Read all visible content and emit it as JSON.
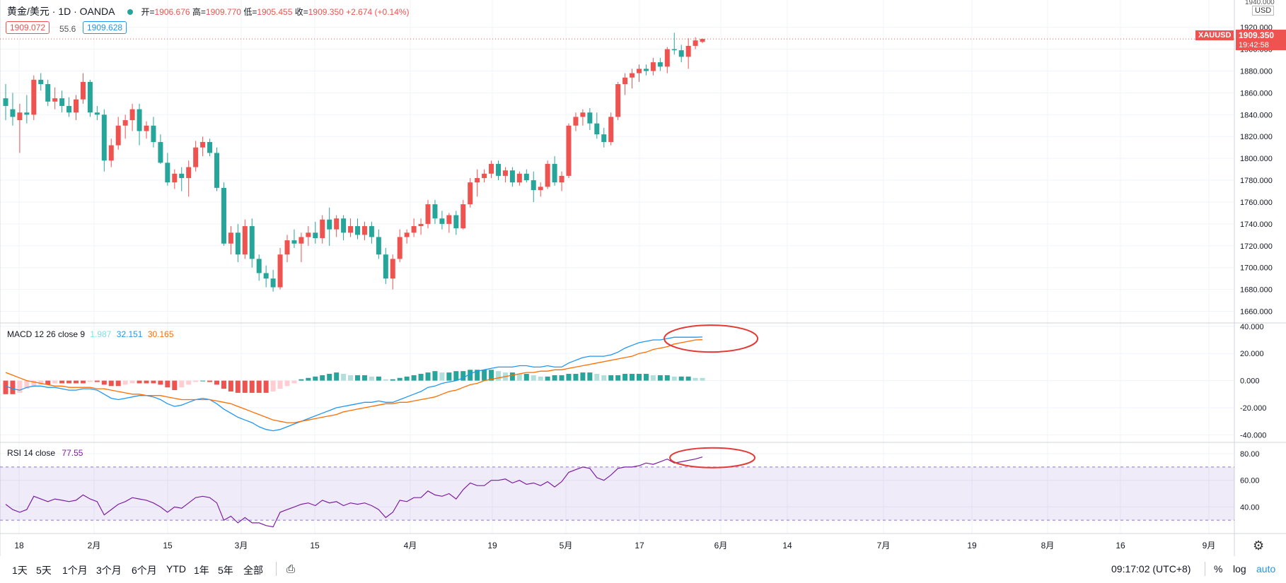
{
  "header": {
    "symbol": "黄金/美元 · 1D · OANDA",
    "ohlc": {
      "open_label": "开=",
      "open": "1906.676",
      "high_label": "高=",
      "high": "1909.770",
      "low_label": "低=",
      "low": "1905.455",
      "close_label": "收=",
      "close": "1909.350",
      "change": "+2.674 (+0.14%)"
    },
    "bid": "1909.072",
    "spread": "55.6",
    "ask": "1909.628"
  },
  "price_axis": {
    "currency": "USD",
    "top_tick": "1940.000",
    "ticker_tag": "XAUUSD",
    "last_price": "1909.350",
    "countdown": "19:42:58"
  },
  "macd_legend": {
    "name": "MACD 12 26 close 9",
    "hist": "1.987",
    "macd": "32.151",
    "signal": "30.165"
  },
  "rsi_legend": {
    "name": "RSI 14 close",
    "value": "77.55"
  },
  "colors": {
    "up": "#ef5350",
    "down": "#26a69a",
    "macd": "#2196f3",
    "signal": "#ff6d00",
    "rsi": "#7b1fa2",
    "annot": "#e53935"
  },
  "chart_data": [
    {
      "type": "candlestick",
      "title": "黄金/美元 · 1D · OANDA",
      "ylim": [
        1650,
        1945
      ],
      "yticks": [
        "1660.000",
        "1680.000",
        "1700.000",
        "1720.000",
        "1740.000",
        "1760.000",
        "1780.000",
        "1800.000",
        "1820.000",
        "1840.000",
        "1860.000",
        "1880.000",
        "1900.000",
        "1920.000"
      ],
      "x_labels": [
        "18",
        "2月",
        "15",
        "3月",
        "15",
        "4月",
        "19",
        "5月",
        "17",
        "6月",
        "14",
        "7月",
        "19",
        "8月",
        "16",
        "9月"
      ],
      "ohlc": [
        [
          1855,
          1868,
          1835,
          1848
        ],
        [
          1845,
          1860,
          1830,
          1838
        ],
        [
          1835,
          1850,
          1805,
          1842
        ],
        [
          1842,
          1858,
          1832,
          1840
        ],
        [
          1840,
          1876,
          1835,
          1872
        ],
        [
          1872,
          1878,
          1862,
          1868
        ],
        [
          1868,
          1872,
          1848,
          1852
        ],
        [
          1852,
          1865,
          1845,
          1855
        ],
        [
          1855,
          1862,
          1842,
          1848
        ],
        [
          1848,
          1856,
          1838,
          1842
        ],
        [
          1842,
          1858,
          1835,
          1854
        ],
        [
          1854,
          1878,
          1850,
          1870
        ],
        [
          1870,
          1872,
          1838,
          1842
        ],
        [
          1842,
          1848,
          1835,
          1840
        ],
        [
          1840,
          1845,
          1788,
          1798
        ],
        [
          1798,
          1818,
          1792,
          1812
        ],
        [
          1812,
          1838,
          1808,
          1830
        ],
        [
          1830,
          1840,
          1818,
          1835
        ],
        [
          1835,
          1850,
          1825,
          1845
        ],
        [
          1845,
          1850,
          1812,
          1825
        ],
        [
          1825,
          1834,
          1818,
          1830
        ],
        [
          1830,
          1838,
          1810,
          1815
        ],
        [
          1815,
          1822,
          1795,
          1796
        ],
        [
          1796,
          1805,
          1775,
          1778
        ],
        [
          1778,
          1790,
          1772,
          1786
        ],
        [
          1786,
          1792,
          1770,
          1782
        ],
        [
          1782,
          1798,
          1765,
          1792
        ],
        [
          1792,
          1816,
          1788,
          1810
        ],
        [
          1810,
          1820,
          1802,
          1815
        ],
        [
          1815,
          1818,
          1802,
          1805
        ],
        [
          1805,
          1810,
          1770,
          1773
        ],
        [
          1773,
          1778,
          1720,
          1722
        ],
        [
          1722,
          1738,
          1712,
          1732
        ],
        [
          1732,
          1740,
          1705,
          1712
        ],
        [
          1712,
          1744,
          1708,
          1738
        ],
        [
          1738,
          1745,
          1700,
          1708
        ],
        [
          1708,
          1712,
          1688,
          1695
        ],
        [
          1695,
          1702,
          1682,
          1690
        ],
        [
          1690,
          1698,
          1678,
          1682
        ],
        [
          1682,
          1718,
          1680,
          1712
        ],
        [
          1712,
          1730,
          1705,
          1725
        ],
        [
          1725,
          1735,
          1718,
          1722
        ],
        [
          1722,
          1732,
          1705,
          1728
        ],
        [
          1728,
          1738,
          1720,
          1732
        ],
        [
          1732,
          1742,
          1722,
          1727
        ],
        [
          1727,
          1748,
          1722,
          1744
        ],
        [
          1744,
          1755,
          1720,
          1735
        ],
        [
          1735,
          1748,
          1728,
          1745
        ],
        [
          1745,
          1748,
          1725,
          1732
        ],
        [
          1732,
          1745,
          1728,
          1738
        ],
        [
          1738,
          1745,
          1726,
          1730
        ],
        [
          1730,
          1742,
          1725,
          1738
        ],
        [
          1738,
          1742,
          1722,
          1728
        ],
        [
          1728,
          1735,
          1708,
          1712
        ],
        [
          1712,
          1718,
          1685,
          1690
        ],
        [
          1690,
          1712,
          1680,
          1708
        ],
        [
          1708,
          1735,
          1705,
          1728
        ],
        [
          1728,
          1735,
          1722,
          1732
        ],
        [
          1732,
          1745,
          1728,
          1738
        ],
        [
          1738,
          1745,
          1730,
          1740
        ],
        [
          1740,
          1762,
          1736,
          1758
        ],
        [
          1758,
          1762,
          1740,
          1745
        ],
        [
          1745,
          1752,
          1735,
          1740
        ],
        [
          1740,
          1750,
          1732,
          1748
        ],
        [
          1748,
          1752,
          1730,
          1736
        ],
        [
          1736,
          1762,
          1735,
          1758
        ],
        [
          1758,
          1782,
          1755,
          1778
        ],
        [
          1778,
          1790,
          1765,
          1782
        ],
        [
          1782,
          1790,
          1778,
          1786
        ],
        [
          1786,
          1798,
          1782,
          1795
        ],
        [
          1795,
          1798,
          1780,
          1784
        ],
        [
          1784,
          1792,
          1778,
          1789
        ],
        [
          1789,
          1792,
          1774,
          1778
        ],
        [
          1778,
          1788,
          1775,
          1786
        ],
        [
          1786,
          1790,
          1778,
          1780
        ],
        [
          1780,
          1788,
          1760,
          1771
        ],
        [
          1771,
          1778,
          1765,
          1774
        ],
        [
          1774,
          1798,
          1772,
          1795
        ],
        [
          1795,
          1802,
          1775,
          1778
        ],
        [
          1778,
          1788,
          1770,
          1784
        ],
        [
          1784,
          1832,
          1782,
          1830
        ],
        [
          1830,
          1842,
          1825,
          1838
        ],
        [
          1838,
          1845,
          1830,
          1842
        ],
        [
          1842,
          1846,
          1826,
          1832
        ],
        [
          1832,
          1842,
          1818,
          1822
        ],
        [
          1822,
          1828,
          1810,
          1815
        ],
        [
          1815,
          1842,
          1812,
          1838
        ],
        [
          1838,
          1870,
          1835,
          1868
        ],
        [
          1868,
          1878,
          1858,
          1874
        ],
        [
          1874,
          1882,
          1864,
          1878
        ],
        [
          1878,
          1886,
          1870,
          1882
        ],
        [
          1882,
          1886,
          1876,
          1880
        ],
        [
          1880,
          1892,
          1876,
          1888
        ],
        [
          1888,
          1892,
          1880,
          1884
        ],
        [
          1884,
          1902,
          1878,
          1900
        ],
        [
          1900,
          1915,
          1895,
          1899
        ],
        [
          1899,
          1904,
          1888,
          1893
        ],
        [
          1893,
          1910,
          1882,
          1903
        ],
        [
          1903,
          1911,
          1900,
          1908
        ],
        [
          1906.676,
          1909.77,
          1905.455,
          1909.35
        ]
      ]
    },
    {
      "type": "line",
      "title": "MACD 12 26 close 9",
      "ylim": [
        -45,
        42
      ],
      "yticks": [
        "40.000",
        "20.000",
        "0.000",
        "-20.000",
        "-40.000"
      ],
      "series": [
        {
          "name": "MACD",
          "values": [
            -4,
            -6,
            -7,
            -5,
            -4,
            -4,
            -5,
            -5,
            -6,
            -7,
            -7,
            -6,
            -6,
            -7,
            -10,
            -13,
            -14,
            -13,
            -12,
            -11,
            -11,
            -12,
            -14,
            -17,
            -19,
            -18,
            -16,
            -14,
            -13,
            -14,
            -17,
            -21,
            -24,
            -27,
            -29,
            -31,
            -34,
            -36,
            -37,
            -36,
            -34,
            -32,
            -30,
            -28,
            -26,
            -24,
            -22,
            -20,
            -19,
            -18,
            -17,
            -16,
            -16,
            -15,
            -16,
            -16,
            -14,
            -12,
            -10,
            -8,
            -5,
            -4,
            -2,
            -1,
            0,
            2,
            5,
            7,
            8,
            9,
            10,
            10,
            10,
            11,
            11,
            10,
            10,
            11,
            10,
            10,
            13,
            15,
            17,
            18,
            18,
            18,
            19,
            21,
            24,
            26,
            28,
            29,
            30,
            30,
            31,
            32,
            32,
            32,
            32,
            32.151
          ]
        },
        {
          "name": "Signal",
          "values": [
            6,
            4,
            2,
            0,
            -1,
            -2,
            -3,
            -4,
            -4,
            -5,
            -5,
            -5,
            -5,
            -6,
            -6,
            -7,
            -8,
            -9,
            -10,
            -10,
            -11,
            -11,
            -11,
            -12,
            -13,
            -14,
            -14,
            -14,
            -14,
            -14,
            -15,
            -16,
            -17,
            -19,
            -21,
            -23,
            -25,
            -27,
            -29,
            -30,
            -31,
            -31,
            -30,
            -29,
            -28,
            -27,
            -26,
            -25,
            -23,
            -22,
            -21,
            -20,
            -19,
            -18,
            -17,
            -17,
            -16,
            -16,
            -15,
            -14,
            -13,
            -12,
            -10,
            -8,
            -7,
            -5,
            -3,
            -2,
            0,
            1,
            2,
            3,
            4,
            5,
            6,
            6,
            7,
            7,
            8,
            8,
            9,
            10,
            11,
            12,
            13,
            14,
            15,
            16,
            17,
            18,
            20,
            21,
            23,
            24,
            25,
            27,
            28,
            29,
            30,
            30.165
          ]
        }
      ],
      "histogram": [
        -10,
        -10,
        -9,
        -6,
        -4,
        -3,
        -3,
        -2,
        -2,
        -2,
        -2,
        -2,
        -1,
        -1,
        -3,
        -4,
        -4,
        -3,
        -2,
        -2,
        -2,
        -2,
        -3,
        -5,
        -7,
        -5,
        -3,
        -1,
        0,
        -1,
        -3,
        -6,
        -8,
        -9,
        -9,
        -9,
        -9,
        -9,
        -8,
        -6,
        -4,
        -2,
        1,
        2,
        3,
        4,
        5,
        6,
        5,
        4,
        4,
        4,
        3,
        3,
        1,
        1,
        2,
        3,
        4,
        5,
        6,
        7,
        6,
        6,
        7,
        7,
        8,
        8,
        8,
        8,
        7,
        6,
        6,
        5,
        5,
        4,
        3,
        3,
        4,
        4,
        5,
        5,
        6,
        6,
        5,
        4,
        4,
        4,
        5,
        5,
        5,
        5,
        4,
        4,
        4,
        3,
        3,
        3,
        2,
        1.987
      ]
    },
    {
      "type": "line",
      "title": "RSI 14 close",
      "ylim": [
        20,
        88
      ],
      "yticks": [
        "80.00",
        "60.00",
        "40.00"
      ],
      "band": [
        30,
        70
      ],
      "series": [
        {
          "name": "RSI",
          "values": [
            42,
            38,
            36,
            38,
            48,
            46,
            44,
            46,
            45,
            44,
            45,
            49,
            46,
            44,
            34,
            38,
            42,
            44,
            47,
            46,
            45,
            43,
            40,
            36,
            40,
            39,
            43,
            47,
            48,
            47,
            43,
            30,
            33,
            28,
            32,
            28,
            28,
            26,
            25,
            36,
            38,
            40,
            42,
            43,
            41,
            45,
            43,
            44,
            41,
            43,
            42,
            43,
            41,
            38,
            32,
            36,
            45,
            44,
            47,
            47,
            52,
            49,
            48,
            50,
            46,
            53,
            58,
            56,
            56,
            60,
            60,
            61,
            58,
            60,
            57,
            58,
            56,
            59,
            55,
            59,
            66,
            68,
            70,
            69,
            62,
            60,
            64,
            69,
            70,
            70,
            71,
            73,
            72,
            74,
            76,
            73,
            74,
            75,
            76,
            77.55
          ]
        }
      ]
    }
  ],
  "time_axis": {
    "labels": [
      "18",
      "2月",
      "15",
      "3月",
      "15",
      "4月",
      "19",
      "5月",
      "17",
      "6月",
      "14",
      "7月",
      "19",
      "8月",
      "16",
      "9月"
    ]
  },
  "toolbar": {
    "ranges": [
      "1天",
      "5天",
      "1个月",
      "3个月",
      "6个月",
      "YTD",
      "1年",
      "5年",
      "全部"
    ],
    "time": "09:17:02 (UTC+8)",
    "percent": "%",
    "log": "log",
    "auto": "auto"
  }
}
